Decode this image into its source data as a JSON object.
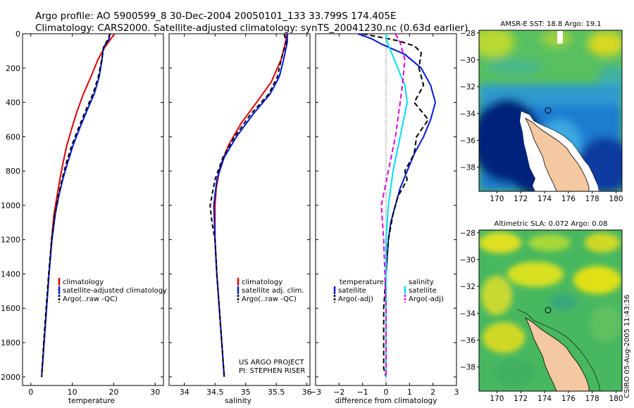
{
  "header": {
    "line1": "Argo profile: AO 5900599_8 30-Dec-2004 20050101_133 33.799S 174.405E",
    "line2": "Climatology: CARS2000. Satellite-adjusted climatology: synTS_20041230.nc (0.63d earlier)"
  },
  "side_label": "CSIRO 05-Aug-2005 11:43:36",
  "colors": {
    "climatology": "#e00000",
    "satellite": "#0018d8",
    "argo": "#000000",
    "salinity_satellite": "#00e0f0",
    "salinity_argo": "#e000e0",
    "ocean_deep": "#00207a",
    "ocean_mid": "#2a8ad8",
    "ocean_warm": "#58c060",
    "land": "#f4c8a0"
  },
  "chart_data": [
    {
      "type": "line",
      "id": "temperature",
      "xlabel": "temperature",
      "ylabel": "",
      "xlim": [
        -2,
        32
      ],
      "ylim": [
        2050,
        0
      ],
      "xticks": [
        0,
        10,
        20,
        30
      ],
      "yticks": [
        0,
        200,
        400,
        600,
        800,
        1000,
        1200,
        1400,
        1600,
        1800,
        2000
      ],
      "legend": [
        "climatology",
        "satellite-adjusted climatology",
        "Argo(..raw -QC)"
      ],
      "series": [
        {
          "name": "climatology",
          "color": "#e00000",
          "dash": "",
          "points": [
            [
              20.2,
              0
            ],
            [
              19.3,
              30
            ],
            [
              17.8,
              80
            ],
            [
              16.2,
              150
            ],
            [
              14.5,
              250
            ],
            [
              12.7,
              350
            ],
            [
              11.2,
              450
            ],
            [
              9.9,
              550
            ],
            [
              8.7,
              650
            ],
            [
              7.8,
              750
            ],
            [
              7.0,
              850
            ],
            [
              6.3,
              950
            ],
            [
              5.6,
              1050
            ],
            [
              5.0,
              1200
            ],
            [
              4.4,
              1400
            ],
            [
              3.8,
              1600
            ],
            [
              3.2,
              1800
            ],
            [
              2.6,
              2000
            ]
          ]
        },
        {
          "name": "satellite-adjusted climatology",
          "color": "#0018d8",
          "dash": "",
          "points": [
            [
              19.0,
              0
            ],
            [
              18.9,
              30
            ],
            [
              17.5,
              80
            ],
            [
              17.2,
              150
            ],
            [
              16.5,
              250
            ],
            [
              15.3,
              350
            ],
            [
              13.5,
              450
            ],
            [
              11.8,
              550
            ],
            [
              10.2,
              650
            ],
            [
              8.9,
              750
            ],
            [
              7.7,
              850
            ],
            [
              6.7,
              950
            ],
            [
              5.9,
              1050
            ],
            [
              5.1,
              1200
            ],
            [
              4.4,
              1400
            ],
            [
              3.8,
              1600
            ],
            [
              3.2,
              1800
            ],
            [
              2.6,
              2000
            ]
          ]
        },
        {
          "name": "Argo(..raw -QC)",
          "color": "#000000",
          "dash": "6,4",
          "points": [
            [
              19.2,
              0
            ],
            [
              18.6,
              30
            ],
            [
              17.6,
              80
            ],
            [
              17.1,
              150
            ],
            [
              16.3,
              250
            ],
            [
              15.0,
              350
            ],
            [
              13.2,
              450
            ],
            [
              11.5,
              550
            ],
            [
              9.9,
              650
            ],
            [
              8.6,
              750
            ],
            [
              7.5,
              850
            ],
            [
              6.6,
              950
            ],
            [
              5.8,
              1050
            ],
            [
              5.0,
              1200
            ],
            [
              4.3,
              1400
            ],
            [
              3.7,
              1600
            ],
            [
              3.1,
              1800
            ],
            [
              2.6,
              2000
            ]
          ]
        }
      ]
    },
    {
      "type": "line",
      "id": "salinity",
      "xlabel": "salinity",
      "ylabel": "",
      "xlim": [
        33.75,
        36.05
      ],
      "ylim": [
        2050,
        0
      ],
      "xticks": [
        34,
        34.5,
        35,
        35.5,
        36
      ],
      "yticks": [
        0,
        200,
        400,
        600,
        800,
        1000,
        1200,
        1400,
        1600,
        1800,
        2000
      ],
      "legend": [
        "climatology",
        "satellite adj. clim.",
        "Argo(..raw -QC)"
      ],
      "annotations": [
        "US ARGO PROJECT",
        "PI: STEPHEN RISER"
      ],
      "series": [
        {
          "name": "climatology",
          "color": "#e00000",
          "dash": "",
          "points": [
            [
              35.67,
              0
            ],
            [
              35.65,
              50
            ],
            [
              35.58,
              150
            ],
            [
              35.42,
              280
            ],
            [
              35.18,
              400
            ],
            [
              34.93,
              520
            ],
            [
              34.72,
              650
            ],
            [
              34.58,
              780
            ],
            [
              34.52,
              900
            ],
            [
              34.5,
              1000
            ],
            [
              34.5,
              1200
            ],
            [
              34.53,
              1400
            ],
            [
              34.57,
              1600
            ],
            [
              34.61,
              1800
            ],
            [
              34.65,
              2000
            ]
          ]
        },
        {
          "name": "satellite adj. clim.",
          "color": "#0018d8",
          "dash": "",
          "points": [
            [
              35.68,
              0
            ],
            [
              35.68,
              50
            ],
            [
              35.62,
              150
            ],
            [
              35.55,
              250
            ],
            [
              35.4,
              350
            ],
            [
              35.12,
              470
            ],
            [
              34.85,
              600
            ],
            [
              34.65,
              720
            ],
            [
              34.53,
              850
            ],
            [
              34.48,
              1000
            ],
            [
              34.5,
              1200
            ],
            [
              34.53,
              1400
            ],
            [
              34.57,
              1600
            ],
            [
              34.61,
              1800
            ],
            [
              34.65,
              2000
            ]
          ]
        },
        {
          "name": "Argo(..raw -QC)",
          "color": "#000000",
          "dash": "6,4",
          "points": [
            [
              35.63,
              0
            ],
            [
              35.66,
              50
            ],
            [
              35.58,
              150
            ],
            [
              35.52,
              250
            ],
            [
              35.38,
              350
            ],
            [
              35.08,
              470
            ],
            [
              34.82,
              600
            ],
            [
              34.63,
              720
            ],
            [
              34.5,
              850
            ],
            [
              34.42,
              1000
            ],
            [
              34.45,
              1100
            ],
            [
              34.5,
              1200
            ],
            [
              34.53,
              1400
            ],
            [
              34.57,
              1600
            ],
            [
              34.61,
              1800
            ],
            [
              34.65,
              2000
            ]
          ]
        }
      ]
    },
    {
      "type": "line",
      "id": "difference",
      "xlabel": "difference from climatology",
      "ylabel": "",
      "xlim": [
        -3,
        3
      ],
      "ylim": [
        2050,
        0
      ],
      "xticks": [
        -3,
        -2,
        -1,
        0,
        1,
        2,
        3
      ],
      "yticks": [
        0,
        200,
        400,
        600,
        800,
        1000,
        1200,
        1400,
        1600,
        1800,
        2000
      ],
      "legend_temperature": {
        "title": "temperature",
        "entries": [
          "satellite",
          "Argo(-adj)"
        ]
      },
      "legend_salinity": {
        "title": "salinity",
        "entries": [
          "satellite",
          "Argo(-adj)"
        ]
      },
      "series": [
        {
          "name": "satellite",
          "group": "temperature",
          "color": "#0018d8",
          "dash": "",
          "points": [
            [
              -1.2,
              0
            ],
            [
              -0.6,
              30
            ],
            [
              -0.2,
              60
            ],
            [
              0.8,
              120
            ],
            [
              1.5,
              200
            ],
            [
              1.9,
              300
            ],
            [
              2.1,
              400
            ],
            [
              1.9,
              500
            ],
            [
              1.6,
              600
            ],
            [
              1.2,
              700
            ],
            [
              0.9,
              800
            ],
            [
              0.6,
              900
            ],
            [
              0.4,
              1000
            ],
            [
              0.2,
              1100
            ],
            [
              0.1,
              1200
            ],
            [
              0.0,
              1400
            ],
            [
              0.0,
              1600
            ],
            [
              0.0,
              1800
            ],
            [
              0.0,
              2000
            ]
          ]
        },
        {
          "name": "Argo(-adj)",
          "group": "temperature",
          "color": "#000000",
          "dash": "7,4",
          "points": [
            [
              -1.0,
              0
            ],
            [
              0.5,
              40
            ],
            [
              1.2,
              70
            ],
            [
              1.5,
              110
            ],
            [
              1.4,
              200
            ],
            [
              1.6,
              300
            ],
            [
              1.2,
              400
            ],
            [
              1.8,
              500
            ],
            [
              1.3,
              600
            ],
            [
              1.2,
              700
            ],
            [
              0.8,
              800
            ],
            [
              0.9,
              850
            ],
            [
              0.5,
              950
            ],
            [
              0.3,
              1050
            ],
            [
              0.1,
              1200
            ],
            [
              0.0,
              1400
            ],
            [
              -0.1,
              1600
            ],
            [
              -0.1,
              1800
            ],
            [
              -0.1,
              1950
            ],
            [
              0.0,
              2000
            ]
          ]
        },
        {
          "name": "satellite",
          "group": "salinity",
          "color": "#00e0f0",
          "dash": "",
          "points": [
            [
              0.0,
              0
            ],
            [
              0.05,
              50
            ],
            [
              0.2,
              100
            ],
            [
              0.5,
              200
            ],
            [
              0.8,
              300
            ],
            [
              0.9,
              400
            ],
            [
              0.6,
              600
            ],
            [
              0.3,
              800
            ],
            [
              0.1,
              1000
            ],
            [
              0.0,
              1200
            ],
            [
              0.0,
              1600
            ],
            [
              0.0,
              2000
            ]
          ]
        },
        {
          "name": "Argo(-adj)",
          "group": "salinity",
          "color": "#e000e0",
          "dash": "7,4",
          "points": [
            [
              0.4,
              0
            ],
            [
              0.6,
              50
            ],
            [
              0.8,
              150
            ],
            [
              0.7,
              300
            ],
            [
              0.6,
              400
            ],
            [
              0.4,
              600
            ],
            [
              0.1,
              800
            ],
            [
              -0.2,
              1000
            ],
            [
              -0.1,
              1200
            ],
            [
              0.0,
              1600
            ],
            [
              0.0,
              2000
            ]
          ]
        }
      ]
    },
    {
      "type": "heatmap",
      "id": "sst_map",
      "title": "AMSR-E SST: 18.8 Argo: 19.1",
      "xlim": [
        168.5,
        180.5
      ],
      "ylim": [
        -39.8,
        -27.8
      ],
      "xticks": [
        170,
        172,
        174,
        176,
        178,
        180
      ],
      "yticks": [
        -28,
        -30,
        -32,
        -34,
        -36,
        -38
      ],
      "argo_position": [
        174.405,
        -33.799
      ]
    },
    {
      "type": "heatmap",
      "id": "sla_map",
      "title": "Altimetric SLA: 0.072 Argo: 0.08",
      "xlim": [
        168.5,
        180.5
      ],
      "ylim": [
        -39.8,
        -27.8
      ],
      "xticks": [
        170,
        172,
        174,
        176,
        178,
        180
      ],
      "yticks": [
        -28,
        -30,
        -32,
        -34,
        -36,
        -38
      ],
      "argo_position": [
        174.405,
        -33.799
      ]
    }
  ]
}
